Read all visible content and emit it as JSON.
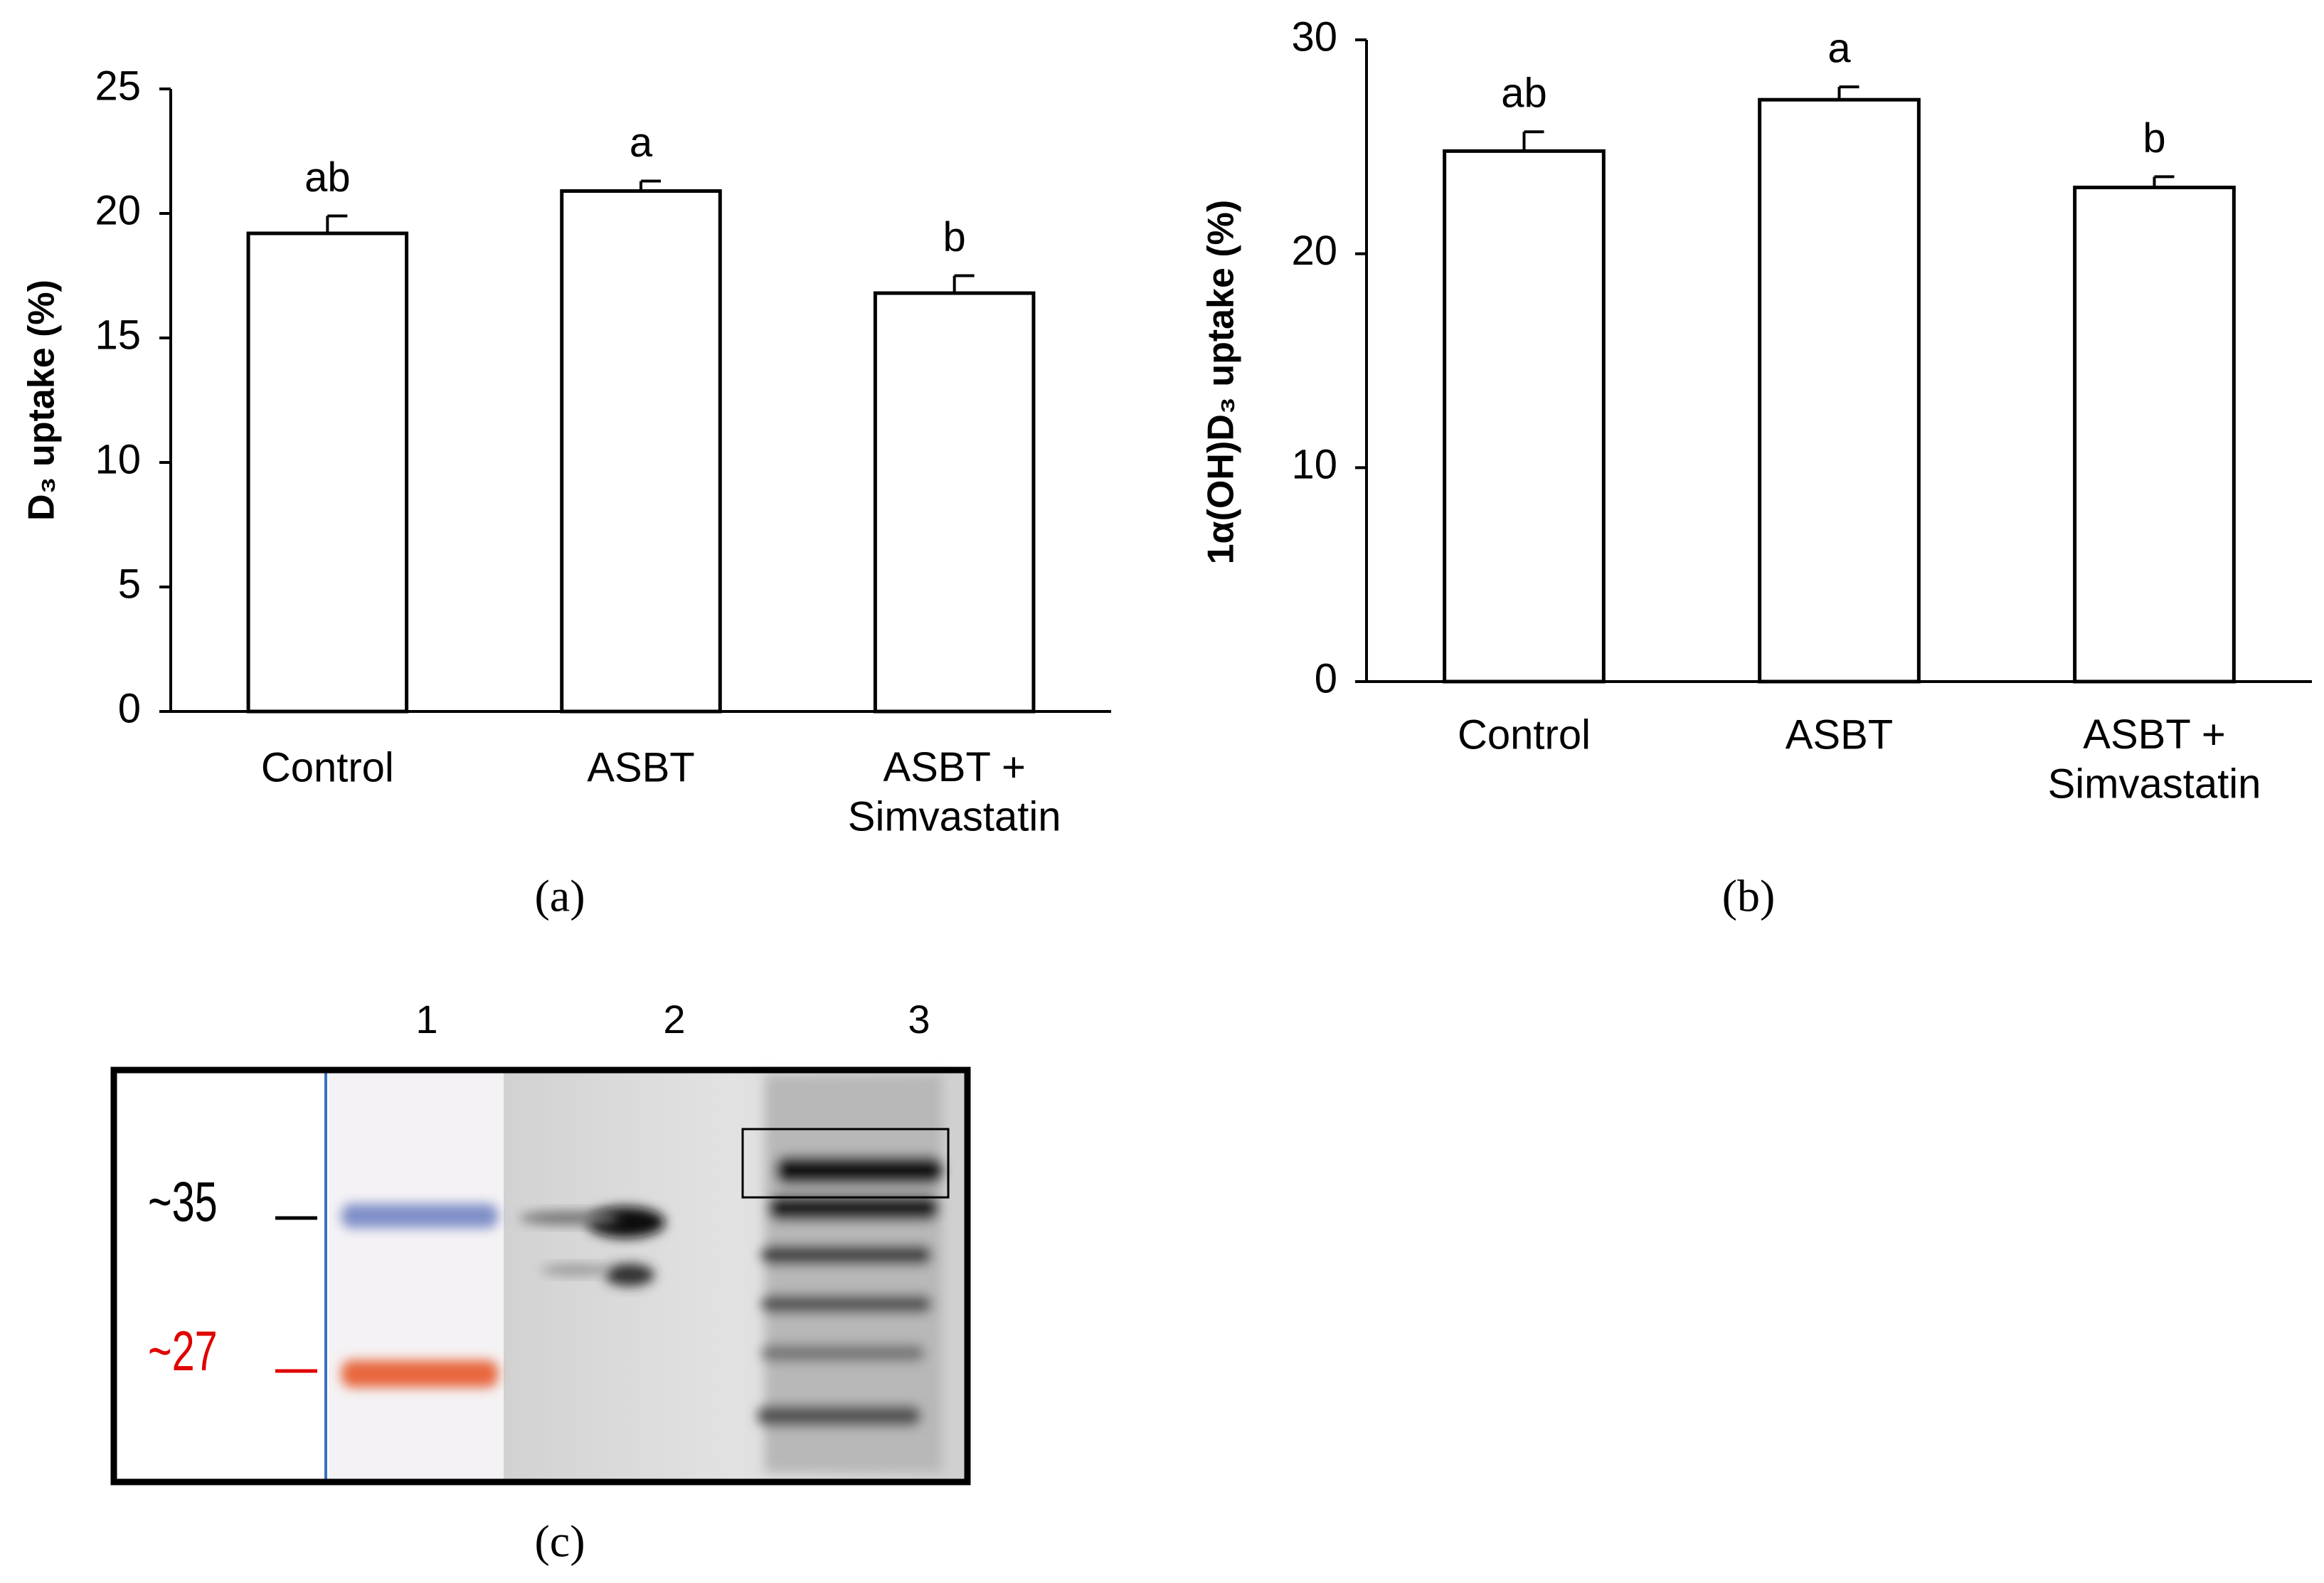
{
  "chart_data": [
    {
      "type": "bar",
      "panel_label": "(a)",
      "y_label": "D₃  uptake (%)",
      "categories": [
        "Control",
        "ASBT",
        "ASBT +\nSimvastatin"
      ],
      "values": [
        19.2,
        20.9,
        16.8
      ],
      "errors": [
        0.7,
        0.4,
        0.7
      ],
      "annotations": [
        "ab",
        "a",
        "b"
      ],
      "color": "#ffffff",
      "ylim": [
        0,
        25
      ],
      "yticks": [
        0,
        5,
        10,
        15,
        20,
        25
      ]
    },
    {
      "type": "bar",
      "panel_label": "(b)",
      "y_label": "1α(OH)D₃  uptake (%)",
      "categories": [
        "Control",
        "ASBT",
        "ASBT +\nSimvastatin"
      ],
      "values": [
        24.8,
        27.2,
        23.1
      ],
      "errors": [
        0.9,
        0.6,
        0.5
      ],
      "annotations": [
        "ab",
        "a",
        "b"
      ],
      "color": "#ffffff",
      "ylim": [
        0,
        30
      ],
      "yticks": [
        0,
        10,
        20,
        30
      ]
    }
  ],
  "blot": {
    "panel_label": "(c)",
    "lanes": [
      "1",
      "2",
      "3"
    ],
    "markers": [
      "~35",
      "~27"
    ]
  }
}
